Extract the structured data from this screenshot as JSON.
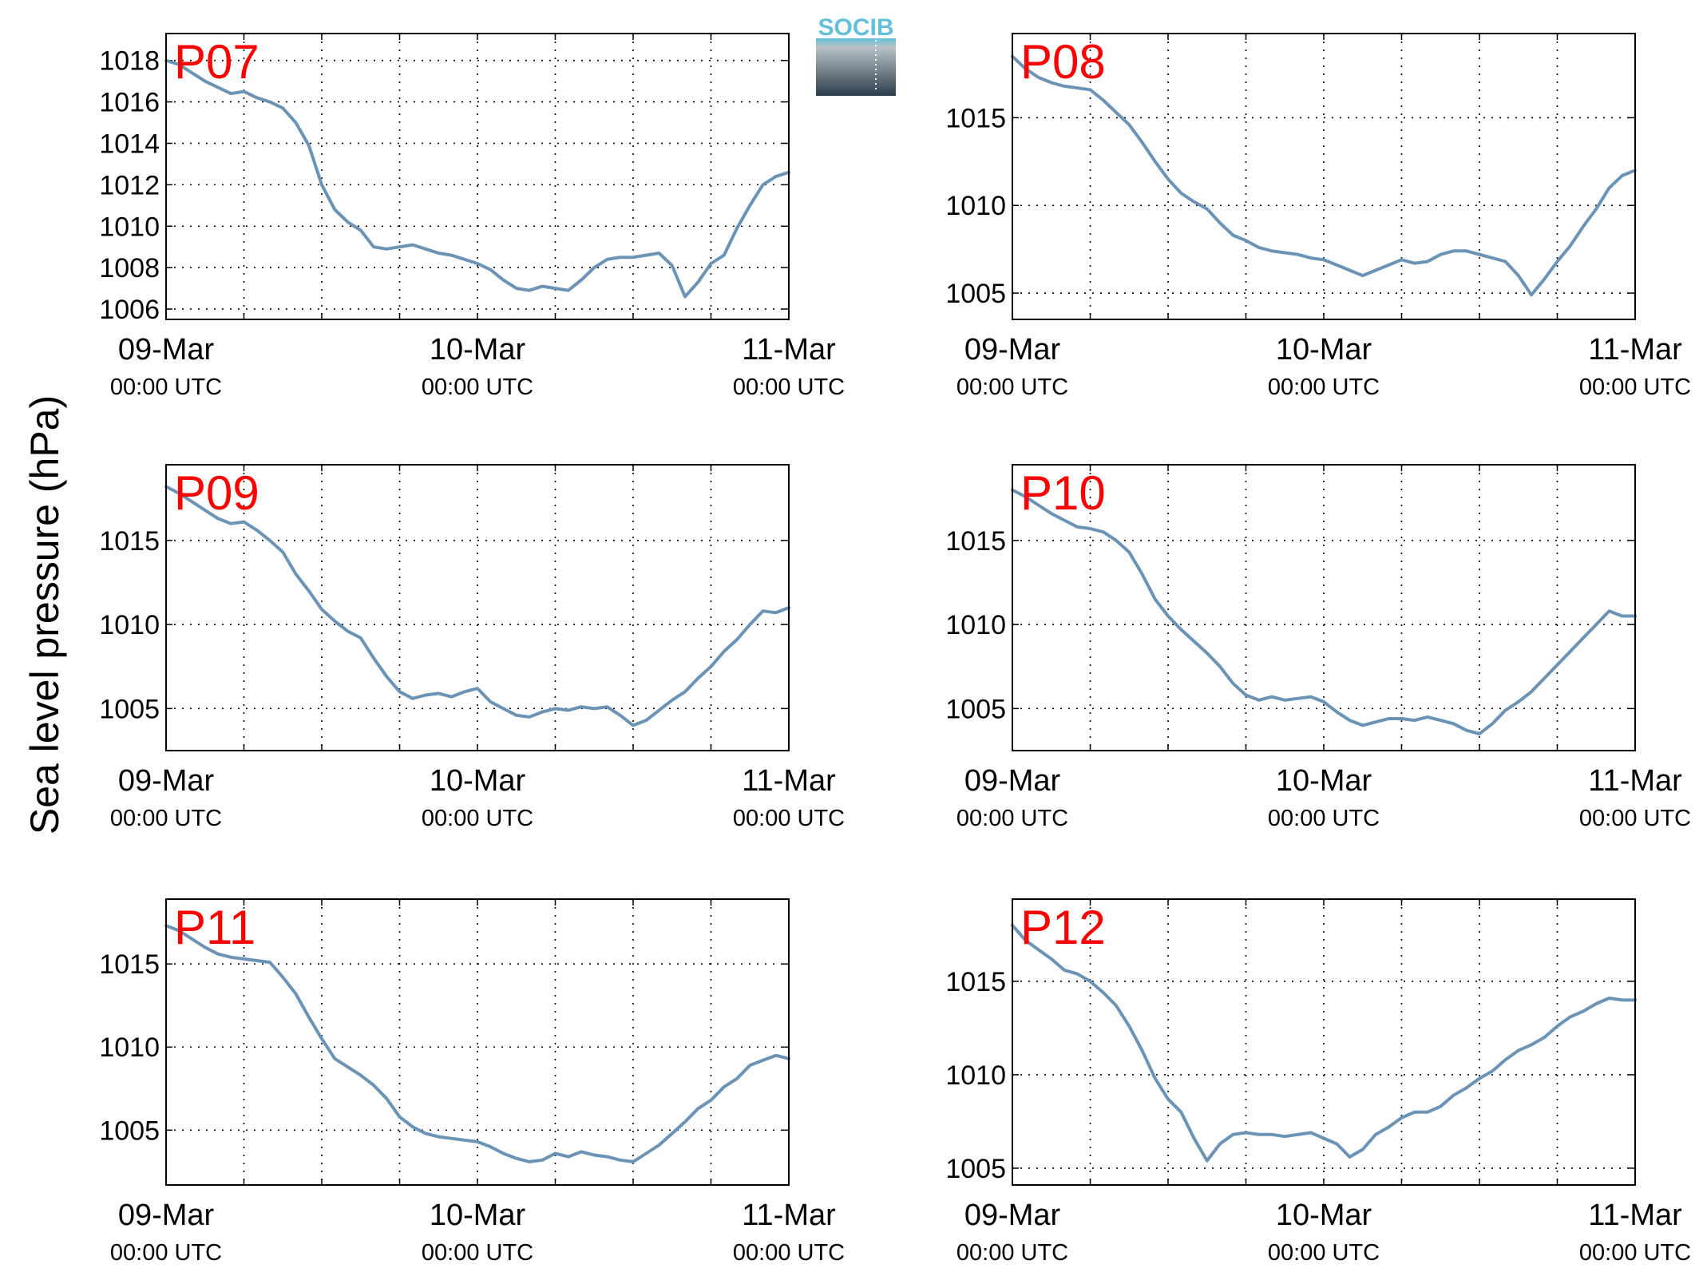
{
  "figure": {
    "ylabel": "Sea level pressure (hPa)",
    "logo_text": "SOCIB"
  },
  "colors": {
    "line": "#6a93b6",
    "title": "#ff0000",
    "logo_top": "#62c1d9",
    "logo_bottom": "#2c3d4a"
  },
  "chart_data": [
    {
      "type": "line",
      "title": "P07",
      "x_units": "hours since 09-Mar 00:00 UTC",
      "xlim": [
        0,
        48
      ],
      "x_ticks": [
        {
          "value": 0,
          "date": "09-Mar",
          "time": "00:00 UTC"
        },
        {
          "value": 24,
          "date": "10-Mar",
          "time": "00:00 UTC"
        },
        {
          "value": 48,
          "date": "11-Mar",
          "time": "00:00 UTC"
        }
      ],
      "ylim": [
        1005.5,
        1019.3
      ],
      "y_ticks": [
        1006,
        1008,
        1010,
        1012,
        1014,
        1016,
        1018
      ],
      "grid": true,
      "series": [
        {
          "x": [
            0,
            1,
            2,
            3,
            4,
            5,
            6,
            7,
            8,
            9,
            10,
            11,
            12,
            13,
            14,
            15,
            16,
            17,
            18,
            19,
            20,
            21,
            22,
            23,
            24,
            25,
            26,
            27,
            28,
            29,
            30,
            31,
            32,
            33,
            34,
            35,
            36,
            37,
            38,
            39,
            40,
            41,
            42,
            43,
            44,
            45,
            46,
            47,
            48
          ],
          "y": [
            1018.0,
            1017.8,
            1017.4,
            1017.0,
            1016.7,
            1016.4,
            1016.5,
            1016.2,
            1016.0,
            1015.7,
            1015.0,
            1013.9,
            1012.0,
            1010.8,
            1010.2,
            1009.8,
            1009.0,
            1008.9,
            1009.0,
            1009.1,
            1008.9,
            1008.7,
            1008.6,
            1008.4,
            1008.2,
            1007.9,
            1007.4,
            1007.0,
            1006.9,
            1007.1,
            1007.0,
            1006.9,
            1007.4,
            1008.0,
            1008.4,
            1008.5,
            1008.5,
            1008.6,
            1008.7,
            1008.1,
            1006.6,
            1007.3,
            1008.2,
            1008.6,
            1009.9,
            1011.0,
            1012.0,
            1012.4,
            1012.6
          ]
        }
      ]
    },
    {
      "type": "line",
      "title": "P08",
      "x_units": "hours since 09-Mar 00:00 UTC",
      "xlim": [
        0,
        48
      ],
      "x_ticks": [
        {
          "value": 0,
          "date": "09-Mar",
          "time": "00:00 UTC"
        },
        {
          "value": 24,
          "date": "10-Mar",
          "time": "00:00 UTC"
        },
        {
          "value": 48,
          "date": "11-Mar",
          "time": "00:00 UTC"
        }
      ],
      "ylim": [
        1003.5,
        1019.8
      ],
      "y_ticks": [
        1005,
        1010,
        1015
      ],
      "grid": true,
      "series": [
        {
          "x": [
            0,
            1,
            2,
            3,
            4,
            5,
            6,
            7,
            8,
            9,
            10,
            11,
            12,
            13,
            14,
            15,
            16,
            17,
            18,
            19,
            20,
            21,
            22,
            23,
            24,
            25,
            26,
            27,
            28,
            29,
            30,
            31,
            32,
            33,
            34,
            35,
            36,
            37,
            38,
            39,
            40,
            41,
            42,
            43,
            44,
            45,
            46,
            47,
            48
          ],
          "y": [
            1018.5,
            1017.8,
            1017.3,
            1017.0,
            1016.8,
            1016.7,
            1016.6,
            1016.0,
            1015.3,
            1014.6,
            1013.6,
            1012.5,
            1011.5,
            1010.7,
            1010.2,
            1009.8,
            1009.0,
            1008.3,
            1008.0,
            1007.6,
            1007.4,
            1007.3,
            1007.2,
            1007.0,
            1006.9,
            1006.6,
            1006.3,
            1006.0,
            1006.3,
            1006.6,
            1006.9,
            1006.7,
            1006.8,
            1007.2,
            1007.4,
            1007.4,
            1007.2,
            1007.0,
            1006.8,
            1006.0,
            1004.9,
            1005.8,
            1006.8,
            1007.7,
            1008.8,
            1009.8,
            1011.0,
            1011.7,
            1012.0
          ]
        }
      ]
    },
    {
      "type": "line",
      "title": "P09",
      "x_units": "hours since 09-Mar 00:00 UTC",
      "xlim": [
        0,
        48
      ],
      "x_ticks": [
        {
          "value": 0,
          "date": "09-Mar",
          "time": "00:00 UTC"
        },
        {
          "value": 24,
          "date": "10-Mar",
          "time": "00:00 UTC"
        },
        {
          "value": 48,
          "date": "11-Mar",
          "time": "00:00 UTC"
        }
      ],
      "ylim": [
        1002.5,
        1019.5
      ],
      "y_ticks": [
        1005,
        1010,
        1015
      ],
      "grid": true,
      "series": [
        {
          "x": [
            0,
            1,
            2,
            3,
            4,
            5,
            6,
            7,
            8,
            9,
            10,
            11,
            12,
            13,
            14,
            15,
            16,
            17,
            18,
            19,
            20,
            21,
            22,
            23,
            24,
            25,
            26,
            27,
            28,
            29,
            30,
            31,
            32,
            33,
            34,
            35,
            36,
            37,
            38,
            39,
            40,
            41,
            42,
            43,
            44,
            45,
            46,
            47,
            48
          ],
          "y": [
            1018.2,
            1017.8,
            1017.3,
            1016.8,
            1016.3,
            1016.0,
            1016.1,
            1015.6,
            1015.0,
            1014.3,
            1013.0,
            1012.0,
            1010.9,
            1010.2,
            1009.6,
            1009.2,
            1008.0,
            1006.9,
            1006.0,
            1005.6,
            1005.8,
            1005.9,
            1005.7,
            1006.0,
            1006.2,
            1005.4,
            1005.0,
            1004.6,
            1004.5,
            1004.8,
            1005.0,
            1004.9,
            1005.1,
            1005.0,
            1005.1,
            1004.6,
            1004.0,
            1004.3,
            1004.9,
            1005.5,
            1006.0,
            1006.8,
            1007.5,
            1008.4,
            1009.1,
            1010.0,
            1010.8,
            1010.7,
            1011.0
          ]
        }
      ]
    },
    {
      "type": "line",
      "title": "P10",
      "x_units": "hours since 09-Mar 00:00 UTC",
      "xlim": [
        0,
        48
      ],
      "x_ticks": [
        {
          "value": 0,
          "date": "09-Mar",
          "time": "00:00 UTC"
        },
        {
          "value": 24,
          "date": "10-Mar",
          "time": "00:00 UTC"
        },
        {
          "value": 48,
          "date": "11-Mar",
          "time": "00:00 UTC"
        }
      ],
      "ylim": [
        1002.5,
        1019.5
      ],
      "y_ticks": [
        1005,
        1010,
        1015
      ],
      "grid": true,
      "series": [
        {
          "x": [
            0,
            1,
            2,
            3,
            4,
            5,
            6,
            7,
            8,
            9,
            10,
            11,
            12,
            13,
            14,
            15,
            16,
            17,
            18,
            19,
            20,
            21,
            22,
            23,
            24,
            25,
            26,
            27,
            28,
            29,
            30,
            31,
            32,
            33,
            34,
            35,
            36,
            37,
            38,
            39,
            40,
            41,
            42,
            43,
            44,
            45,
            46,
            47,
            48
          ],
          "y": [
            1018.0,
            1017.6,
            1017.1,
            1016.6,
            1016.2,
            1015.8,
            1015.7,
            1015.5,
            1015.0,
            1014.3,
            1013.0,
            1011.5,
            1010.5,
            1009.7,
            1009.0,
            1008.3,
            1007.5,
            1006.5,
            1005.8,
            1005.5,
            1005.7,
            1005.5,
            1005.6,
            1005.7,
            1005.4,
            1004.8,
            1004.3,
            1004.0,
            1004.2,
            1004.4,
            1004.4,
            1004.3,
            1004.5,
            1004.3,
            1004.1,
            1003.7,
            1003.5,
            1004.1,
            1004.9,
            1005.4,
            1006.0,
            1006.8,
            1007.6,
            1008.4,
            1009.2,
            1010.0,
            1010.8,
            1010.5,
            1010.5
          ]
        }
      ]
    },
    {
      "type": "line",
      "title": "P11",
      "x_units": "hours since 09-Mar 00:00 UTC",
      "xlim": [
        0,
        48
      ],
      "x_ticks": [
        {
          "value": 0,
          "date": "09-Mar",
          "time": "00:00 UTC"
        },
        {
          "value": 24,
          "date": "10-Mar",
          "time": "00:00 UTC"
        },
        {
          "value": 48,
          "date": "11-Mar",
          "time": "00:00 UTC"
        }
      ],
      "ylim": [
        1001.7,
        1018.9
      ],
      "y_ticks": [
        1005,
        1010,
        1015
      ],
      "grid": true,
      "series": [
        {
          "x": [
            0,
            1,
            2,
            3,
            4,
            5,
            6,
            7,
            8,
            9,
            10,
            11,
            12,
            13,
            14,
            15,
            16,
            17,
            18,
            19,
            20,
            21,
            22,
            23,
            24,
            25,
            26,
            27,
            28,
            29,
            30,
            31,
            32,
            33,
            34,
            35,
            36,
            37,
            38,
            39,
            40,
            41,
            42,
            43,
            44,
            45,
            46,
            47,
            48
          ],
          "y": [
            1017.3,
            1017.0,
            1016.5,
            1016.0,
            1015.6,
            1015.4,
            1015.3,
            1015.2,
            1015.1,
            1014.2,
            1013.2,
            1011.8,
            1010.5,
            1009.3,
            1008.8,
            1008.3,
            1007.7,
            1006.9,
            1005.8,
            1005.2,
            1004.8,
            1004.6,
            1004.5,
            1004.4,
            1004.3,
            1004.0,
            1003.6,
            1003.3,
            1003.1,
            1003.2,
            1003.6,
            1003.4,
            1003.7,
            1003.5,
            1003.4,
            1003.2,
            1003.1,
            1003.6,
            1004.1,
            1004.8,
            1005.5,
            1006.3,
            1006.8,
            1007.6,
            1008.1,
            1008.9,
            1009.2,
            1009.5,
            1009.3
          ]
        }
      ]
    },
    {
      "type": "line",
      "title": "P12",
      "x_units": "hours since 09-Mar 00:00 UTC",
      "xlim": [
        0,
        48
      ],
      "x_ticks": [
        {
          "value": 0,
          "date": "09-Mar",
          "time": "00:00 UTC"
        },
        {
          "value": 24,
          "date": "10-Mar",
          "time": "00:00 UTC"
        },
        {
          "value": 48,
          "date": "11-Mar",
          "time": "00:00 UTC"
        }
      ],
      "ylim": [
        1004.1,
        1019.4
      ],
      "y_ticks": [
        1005,
        1010,
        1015
      ],
      "grid": true,
      "series": [
        {
          "x": [
            0,
            1,
            2,
            3,
            4,
            5,
            6,
            7,
            8,
            9,
            10,
            11,
            12,
            13,
            14,
            15,
            16,
            17,
            18,
            19,
            20,
            21,
            22,
            23,
            24,
            25,
            26,
            27,
            28,
            29,
            30,
            31,
            32,
            33,
            34,
            35,
            36,
            37,
            38,
            39,
            40,
            41,
            42,
            43,
            44,
            45,
            46,
            47,
            48
          ],
          "y": [
            1018.0,
            1017.2,
            1016.7,
            1016.2,
            1015.6,
            1015.4,
            1015.0,
            1014.4,
            1013.7,
            1012.6,
            1011.3,
            1009.8,
            1008.7,
            1008.0,
            1006.6,
            1005.4,
            1006.3,
            1006.8,
            1006.9,
            1006.8,
            1006.8,
            1006.7,
            1006.8,
            1006.9,
            1006.6,
            1006.3,
            1005.6,
            1006.0,
            1006.8,
            1007.2,
            1007.7,
            1008.0,
            1008.0,
            1008.3,
            1008.9,
            1009.3,
            1009.8,
            1010.2,
            1010.8,
            1011.3,
            1011.6,
            1012.0,
            1012.6,
            1013.1,
            1013.4,
            1013.8,
            1014.1,
            1014.0,
            1014.0
          ]
        }
      ]
    }
  ]
}
